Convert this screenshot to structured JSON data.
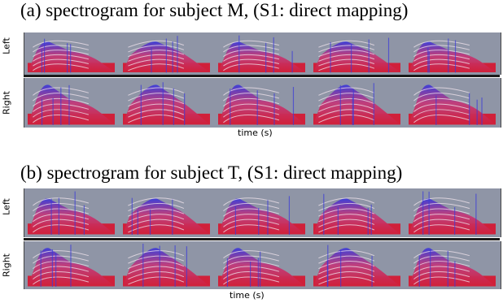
{
  "figure": {
    "panel_a": {
      "caption": "(a) spectrogram for subject M, (S1: direct mapping)",
      "channels": [
        "Left",
        "Right"
      ],
      "xlabel": "time (s)",
      "syllable_count": 5
    },
    "panel_b": {
      "caption": "(b) spectrogram for subject T, (S1: direct mapping)",
      "channels": [
        "Left",
        "Right"
      ],
      "xlabel": "time (s)",
      "syllable_count": 5
    }
  },
  "colors": {
    "background": "#8f95a6",
    "low_energy": "#3b3bd9",
    "mid_energy": "#d0203a",
    "high_energy": "#f2e6ee"
  }
}
